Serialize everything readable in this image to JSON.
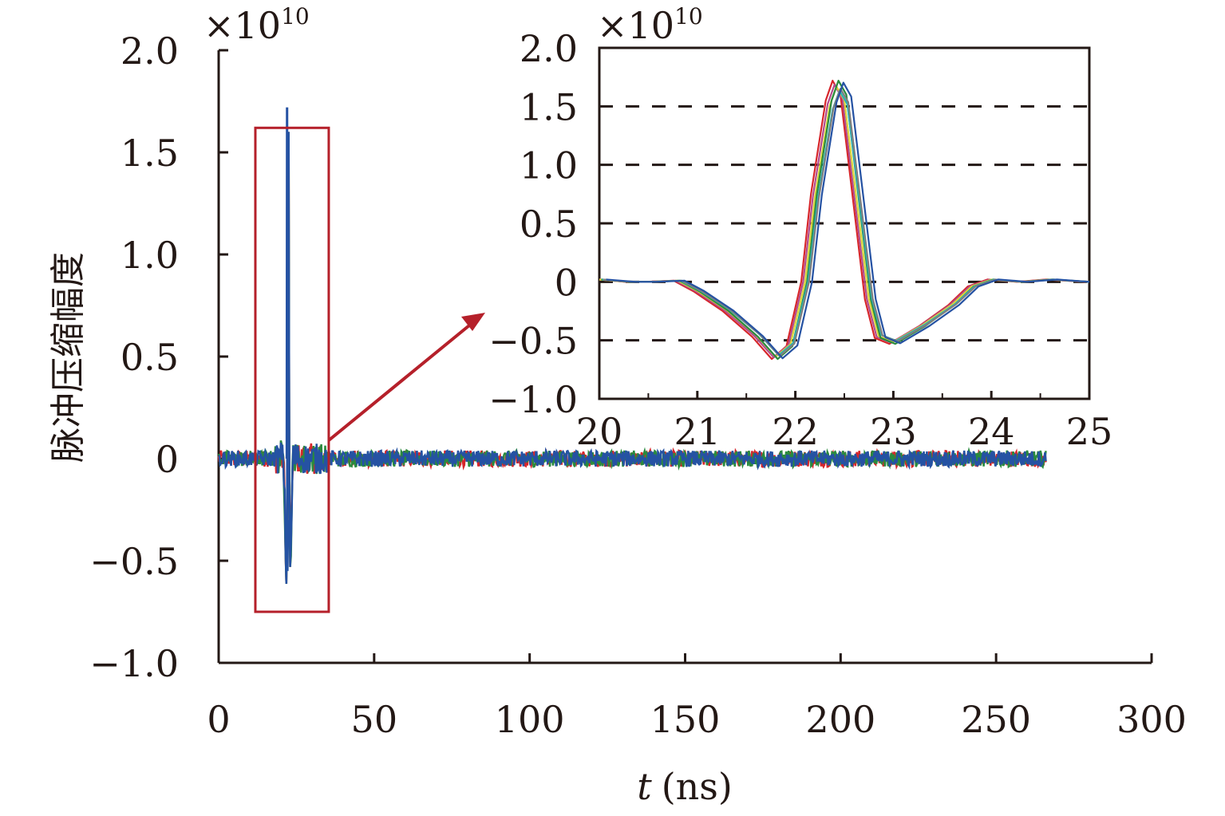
{
  "chart_data": [
    {
      "type": "line",
      "name": "main",
      "xlabel_var": "t",
      "xlabel_unit": "(ns)",
      "ylabel": "脉冲压缩幅度",
      "y_multiplier": "×10",
      "y_multiplier_exp": "10",
      "xlim": [
        0,
        300
      ],
      "ylim": [
        -1.0,
        2.0
      ],
      "xticks": [
        "0",
        "50",
        "100",
        "150",
        "200",
        "250",
        "300"
      ],
      "xtick_values": [
        0,
        50,
        100,
        150,
        200,
        250,
        300
      ],
      "yticks": [
        "−1.0",
        "−0.5",
        "0",
        "0.5",
        "1.0",
        "1.5",
        "2.0"
      ],
      "ytick_values": [
        -1.0,
        -0.5,
        0,
        0.5,
        1.0,
        1.5,
        2.0
      ],
      "grid": false,
      "signal_t_end": 266,
      "noise_amplitude": 0.05,
      "pulse_center": 22.3,
      "pulse_peak": 1.72,
      "pulse_min": -0.68,
      "highlight_box": {
        "t_range": [
          11.8,
          35.4
        ],
        "y_range": [
          -0.75,
          1.62
        ],
        "color": "#b5202a"
      }
    },
    {
      "type": "line",
      "name": "inset",
      "xlim": [
        20,
        25
      ],
      "ylim": [
        -1.0,
        2.0
      ],
      "y_multiplier": "×10",
      "y_multiplier_exp": "10",
      "xticks": [
        "20",
        "21",
        "22",
        "23",
        "24",
        "25"
      ],
      "xtick_values": [
        20,
        21,
        22,
        23,
        24,
        25
      ],
      "yticks": [
        "−1.0",
        "−0.5",
        "0",
        "0.5",
        "1.0",
        "1.5",
        "2.0"
      ],
      "ytick_values": [
        -1.0,
        -0.5,
        0,
        0.5,
        1.0,
        1.5,
        2.0
      ],
      "grid_dashed_at": [
        -0.5,
        0,
        0.5,
        1.0,
        1.5
      ],
      "base_waveform": {
        "t": [
          20.0,
          20.3,
          20.5,
          20.8,
          21.0,
          21.3,
          21.6,
          21.8,
          21.95,
          22.1,
          22.2,
          22.35,
          22.42,
          22.5,
          22.6,
          22.75,
          22.85,
          23.0,
          23.3,
          23.6,
          23.8,
          24.0,
          24.3,
          24.6,
          25.0
        ],
        "y": [
          0.02,
          0.0,
          0.0,
          0.01,
          -0.08,
          -0.25,
          -0.47,
          -0.66,
          -0.55,
          0.0,
          0.75,
          1.55,
          1.72,
          1.6,
          0.9,
          -0.15,
          -0.48,
          -0.53,
          -0.38,
          -0.2,
          -0.04,
          0.02,
          0.0,
          0.02,
          0.0
        ]
      },
      "series": [
        {
          "name": "series-1",
          "color": "#d7262b",
          "t_shift": -0.04,
          "scale": 1.0
        },
        {
          "name": "series-2",
          "color": "#b24a8c",
          "t_shift": -0.02,
          "scale": 0.98
        },
        {
          "name": "series-3",
          "color": "#d9d43a",
          "t_shift": 0.0,
          "scale": 0.97
        },
        {
          "name": "series-4",
          "color": "#2a8a3e",
          "t_shift": 0.02,
          "scale": 1.0
        },
        {
          "name": "series-5",
          "color": "#2ab0b5",
          "t_shift": 0.03,
          "scale": 0.95
        },
        {
          "name": "series-6",
          "color": "#7f7f7f",
          "t_shift": 0.04,
          "scale": 0.96
        },
        {
          "name": "series-7",
          "color": "#2552a3",
          "t_shift": 0.07,
          "scale": 0.99
        }
      ]
    }
  ]
}
